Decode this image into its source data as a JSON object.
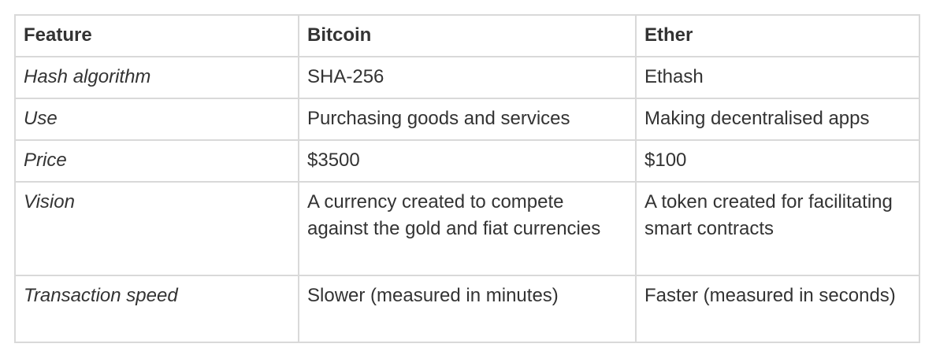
{
  "table": {
    "headers": [
      "Feature",
      "Bitcoin",
      "Ether"
    ],
    "rows": [
      [
        "Hash algorithm",
        "SHA-256",
        "Ethash"
      ],
      [
        "Use",
        "Purchasing goods and services",
        "Making decentralised apps"
      ],
      [
        "Price",
        "$3500",
        "$100"
      ],
      [
        "Vision",
        "A currency created to compete against the gold and fiat currencies",
        "A token created for facilitating smart contracts"
      ],
      [
        "Transaction speed",
        "Slower (measured in minutes)",
        "Faster (measured in seconds)"
      ]
    ]
  }
}
